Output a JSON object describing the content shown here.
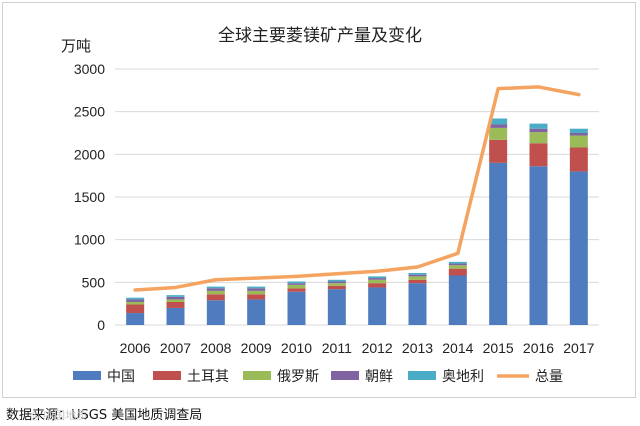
{
  "chart_data": {
    "type": "bar",
    "stacked": true,
    "title": "全球主要菱镁矿产量及变化",
    "ylabel": "万吨",
    "xlabel": "",
    "ylim": [
      0,
      3000
    ],
    "yticks": [
      0,
      500,
      1000,
      1500,
      2000,
      2500,
      3000
    ],
    "categories": [
      "2006",
      "2007",
      "2008",
      "2009",
      "2010",
      "2011",
      "2012",
      "2013",
      "2014",
      "2015",
      "2016",
      "2017"
    ],
    "series": [
      {
        "name": "中国",
        "color": "#4f7cbf",
        "values": [
          140,
          200,
          290,
          300,
          390,
          420,
          440,
          490,
          580,
          1900,
          1860,
          1800
        ]
      },
      {
        "name": "土耳其",
        "color": "#c0504d",
        "values": [
          100,
          70,
          70,
          60,
          40,
          40,
          50,
          40,
          80,
          270,
          270,
          280
        ]
      },
      {
        "name": "俄罗斯",
        "color": "#9bbb59",
        "values": [
          30,
          30,
          40,
          40,
          40,
          30,
          40,
          40,
          40,
          140,
          130,
          140
        ]
      },
      {
        "name": "朝鲜",
        "color": "#8064a2",
        "values": [
          30,
          30,
          30,
          30,
          20,
          20,
          20,
          20,
          20,
          40,
          40,
          30
        ]
      },
      {
        "name": "奥地利",
        "color": "#4bacc6",
        "values": [
          20,
          20,
          20,
          20,
          20,
          20,
          20,
          20,
          20,
          70,
          60,
          50
        ]
      }
    ],
    "line": {
      "name": "总量",
      "color": "#f4a460",
      "values": [
        410,
        440,
        530,
        550,
        570,
        600,
        630,
        680,
        840,
        2770,
        2790,
        2700
      ]
    },
    "legend_position": "bottom"
  },
  "source_note": "数据来源：USGS 美国地质调查局"
}
